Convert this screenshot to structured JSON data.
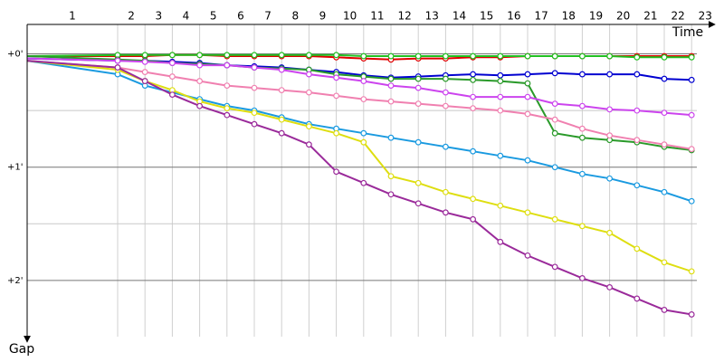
{
  "chart_data": {
    "type": "line",
    "x_label": "Time",
    "y_label": "Gap",
    "lap_labels": [
      "1",
      "2",
      "3",
      "4",
      "5",
      "6",
      "7",
      "8",
      "9",
      "10",
      "11",
      "12",
      "13",
      "14",
      "15",
      "16",
      "17",
      "18",
      "19",
      "20",
      "21",
      "22",
      "23"
    ],
    "x": [
      0,
      1,
      2,
      3,
      4,
      5,
      6,
      7,
      8,
      9,
      10,
      11,
      12,
      13,
      14,
      15,
      16,
      17,
      18,
      19,
      20,
      21,
      22
    ],
    "ylim": [
      -0.26,
      2.6
    ],
    "yticks": [
      {
        "value": 0,
        "label": "+0'"
      },
      {
        "value": 1,
        "label": "+1'"
      },
      {
        "value": 2,
        "label": "+2'"
      }
    ],
    "minor_yticks": [
      0.5,
      1.5
    ],
    "grid": true,
    "series": [
      {
        "color": "#e00000",
        "values": [
          0.02,
          0.02,
          0.02,
          0.01,
          0.01,
          0.02,
          0.02,
          0.02,
          0.02,
          0.03,
          0.04,
          0.05,
          0.04,
          0.04,
          0.03,
          0.03,
          0.02,
          0.02,
          0.02,
          0.02,
          0.02,
          0.02,
          0.02
        ]
      },
      {
        "color": "#22c022",
        "values": [
          0.02,
          0.01,
          0.01,
          0.01,
          0.01,
          0.01,
          0.01,
          0.01,
          0.01,
          0.01,
          0.02,
          0.02,
          0.02,
          0.02,
          0.02,
          0.02,
          0.02,
          0.02,
          0.02,
          0.02,
          0.03,
          0.03,
          0.03
        ]
      },
      {
        "color": "#0000d0",
        "values": [
          0.04,
          0.06,
          0.06,
          0.07,
          0.08,
          0.1,
          0.11,
          0.12,
          0.14,
          0.16,
          0.19,
          0.21,
          0.2,
          0.19,
          0.18,
          0.19,
          0.18,
          0.17,
          0.18,
          0.18,
          0.18,
          0.22,
          0.23
        ]
      },
      {
        "color": "#2a9a2a",
        "values": [
          0.02,
          0.05,
          0.06,
          0.08,
          0.09,
          0.1,
          0.12,
          0.13,
          0.14,
          0.18,
          0.2,
          0.22,
          0.22,
          0.22,
          0.23,
          0.24,
          0.26,
          0.7,
          0.74,
          0.76,
          0.78,
          0.82,
          0.85
        ]
      },
      {
        "color": "#cc44ee",
        "values": [
          0.04,
          0.06,
          0.07,
          0.08,
          0.1,
          0.1,
          0.12,
          0.14,
          0.18,
          0.21,
          0.24,
          0.28,
          0.3,
          0.34,
          0.38,
          0.38,
          0.38,
          0.44,
          0.46,
          0.49,
          0.5,
          0.52,
          0.54
        ]
      },
      {
        "color": "#f080b0",
        "values": [
          0.06,
          0.12,
          0.16,
          0.2,
          0.24,
          0.28,
          0.3,
          0.32,
          0.34,
          0.37,
          0.4,
          0.42,
          0.44,
          0.46,
          0.48,
          0.5,
          0.53,
          0.58,
          0.66,
          0.72,
          0.76,
          0.8,
          0.84
        ]
      },
      {
        "color": "#1a9ae0",
        "values": [
          0.06,
          0.18,
          0.28,
          0.34,
          0.4,
          0.46,
          0.5,
          0.56,
          0.62,
          0.66,
          0.7,
          0.74,
          0.78,
          0.82,
          0.86,
          0.9,
          0.94,
          1.0,
          1.06,
          1.1,
          1.16,
          1.22,
          1.3
        ]
      },
      {
        "color": "#dede10",
        "values": [
          0.06,
          0.14,
          0.24,
          0.32,
          0.42,
          0.48,
          0.52,
          0.58,
          0.64,
          0.7,
          0.78,
          1.08,
          1.14,
          1.22,
          1.28,
          1.34,
          1.4,
          1.46,
          1.52,
          1.58,
          1.72,
          1.84,
          1.92
        ]
      },
      {
        "color": "#9a2a9a",
        "values": [
          0.06,
          0.12,
          0.24,
          0.36,
          0.46,
          0.54,
          0.62,
          0.7,
          0.8,
          1.04,
          1.14,
          1.24,
          1.32,
          1.4,
          1.46,
          1.66,
          1.78,
          1.88,
          1.98,
          2.06,
          2.16,
          2.26,
          2.3
        ]
      }
    ]
  }
}
